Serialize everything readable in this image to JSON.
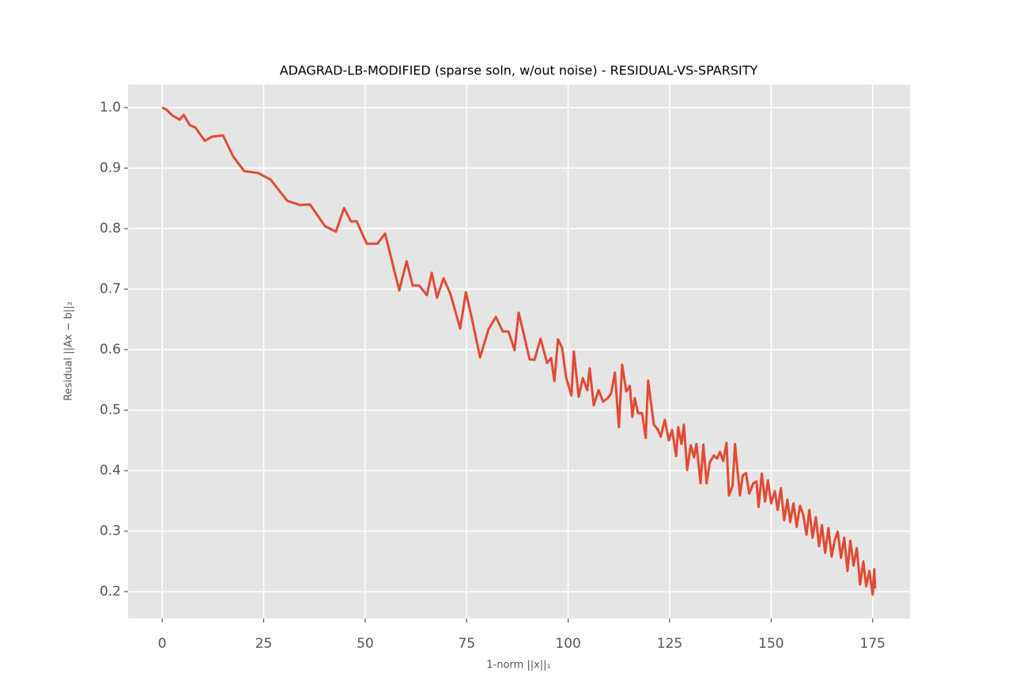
{
  "chart_data": {
    "type": "line",
    "title": "ADAGRAD-LB-MODIFIED (sparse soln, w/out noise) - RESIDUAL-VS-SPARSITY",
    "x_label": "1-norm ||x||₁",
    "y_label": "Residual ||Ax − b||₂",
    "color": "#e24a33",
    "grid": true,
    "xlim": [
      -8.4,
      184.2
    ],
    "ylim": [
      0.1556,
      1.038
    ],
    "xticks": [
      0,
      25,
      50,
      75,
      100,
      125,
      150,
      175
    ],
    "yticks": [
      0.2,
      0.3,
      0.4,
      0.5,
      0.6,
      0.7,
      0.8,
      0.9,
      {
        "value": 1,
        "label": "1.0"
      }
    ],
    "x": [
      0,
      1,
      2.5,
      4.3,
      5.3,
      6.8,
      8.2,
      10.5,
      12.3,
      15,
      17.5,
      20.2,
      23.6,
      26.7,
      30.8,
      33.9,
      36.4,
      40.1,
      42.8,
      44.8,
      46.5,
      47.9,
      50.4,
      53,
      54.9,
      58.4,
      60.2,
      61.7,
      63.3,
      65.2,
      66.4,
      67.7,
      69.3,
      71,
      73.4,
      74.8,
      76.3,
      78.3,
      80.4,
      82.2,
      83.9,
      85.3,
      86.8,
      87.8,
      89.2,
      90.5,
      91.7,
      93.2,
      94.8,
      95.8,
      96.6,
      97.5,
      98.5,
      99.5,
      100.8,
      101.4,
      102.6,
      103.6,
      104.7,
      105.3,
      106.3,
      107.5,
      108.6,
      109.8,
      110.6,
      111.5,
      112.5,
      113.3,
      114.3,
      115.2,
      115.8,
      116.4,
      117.2,
      118.2,
      119.1,
      119.7,
      121.1,
      122.1,
      122.8,
      123.8,
      124.8,
      125.6,
      126.6,
      127.1,
      127.9,
      128.5,
      129.3,
      130.2,
      131,
      131.6,
      132.6,
      133.3,
      134.1,
      134.9,
      135.9,
      136.7,
      137.4,
      138.2,
      139,
      139.6,
      140.5,
      141.1,
      142.3,
      143,
      143.8,
      144.6,
      145.6,
      146.4,
      146.9,
      147.7,
      148.5,
      149.2,
      150,
      150.9,
      151.6,
      152.4,
      153.2,
      154,
      154.7,
      155.5,
      156.3,
      157.1,
      157.9,
      158.7,
      159.4,
      160.2,
      161,
      161.8,
      162.5,
      163.3,
      164.1,
      164.9,
      165.7,
      166.4,
      167.2,
      168,
      168.8,
      169.5,
      170.3,
      171.1,
      171.9,
      172.7,
      173.4,
      174.2,
      175,
      175.4,
      175.6
    ],
    "values": [
      1.0,
      0.997,
      0.987,
      0.98,
      0.988,
      0.971,
      0.967,
      0.945,
      0.952,
      0.954,
      0.919,
      0.895,
      0.892,
      0.881,
      0.846,
      0.839,
      0.84,
      0.804,
      0.795,
      0.834,
      0.812,
      0.812,
      0.775,
      0.775,
      0.792,
      0.698,
      0.746,
      0.706,
      0.706,
      0.69,
      0.727,
      0.686,
      0.718,
      0.692,
      0.635,
      0.695,
      0.651,
      0.587,
      0.634,
      0.654,
      0.63,
      0.63,
      0.599,
      0.661,
      0.622,
      0.584,
      0.583,
      0.618,
      0.578,
      0.586,
      0.548,
      0.617,
      0.603,
      0.554,
      0.524,
      0.597,
      0.522,
      0.553,
      0.533,
      0.569,
      0.508,
      0.533,
      0.514,
      0.52,
      0.528,
      0.562,
      0.472,
      0.575,
      0.531,
      0.54,
      0.489,
      0.52,
      0.495,
      0.495,
      0.454,
      0.549,
      0.476,
      0.468,
      0.456,
      0.484,
      0.45,
      0.467,
      0.424,
      0.472,
      0.444,
      0.476,
      0.401,
      0.442,
      0.422,
      0.444,
      0.379,
      0.443,
      0.379,
      0.414,
      0.425,
      0.42,
      0.431,
      0.416,
      0.446,
      0.359,
      0.375,
      0.444,
      0.359,
      0.392,
      0.396,
      0.362,
      0.379,
      0.382,
      0.34,
      0.395,
      0.349,
      0.384,
      0.346,
      0.366,
      0.335,
      0.371,
      0.318,
      0.352,
      0.315,
      0.346,
      0.307,
      0.342,
      0.327,
      0.294,
      0.335,
      0.289,
      0.323,
      0.275,
      0.31,
      0.264,
      0.305,
      0.258,
      0.286,
      0.299,
      0.256,
      0.289,
      0.234,
      0.284,
      0.243,
      0.272,
      0.212,
      0.25,
      0.209,
      0.234,
      0.195,
      0.237,
      0.205
    ]
  }
}
